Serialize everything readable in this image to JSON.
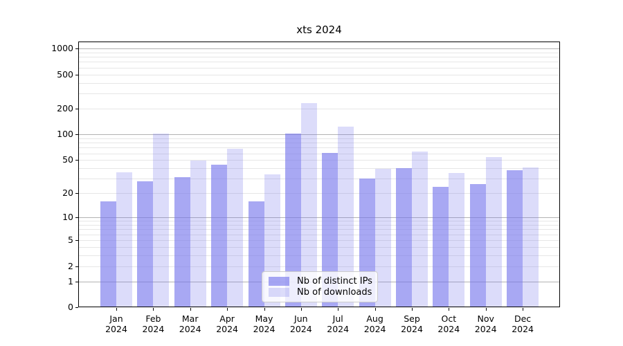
{
  "title": "xts 2024",
  "chart_data": {
    "type": "bar",
    "title": "xts 2024",
    "categories": [
      "Jan 2024",
      "Feb 2024",
      "Mar 2024",
      "Apr 2024",
      "May 2024",
      "Jun 2024",
      "Jul 2024",
      "Aug 2024",
      "Sep 2024",
      "Oct 2024",
      "Nov 2024",
      "Dec 2024"
    ],
    "series": [
      {
        "name": "Nb of distinct IPs",
        "values": [
          16,
          28,
          31,
          44,
          16,
          102,
          61,
          30,
          40,
          24,
          26,
          38
        ]
      },
      {
        "name": "Nb of downloads",
        "values": [
          36,
          102,
          49,
          68,
          34,
          230,
          124,
          39,
          63,
          35,
          54,
          41
        ]
      }
    ],
    "xlabel": "",
    "ylabel": "",
    "yscale": "log1p",
    "ylim": [
      0,
      1100
    ],
    "ytick_values": [
      0,
      1,
      2,
      5,
      10,
      20,
      50,
      100,
      200,
      500,
      1000
    ],
    "ytick_labels": [
      "0",
      "1",
      "2",
      "5",
      "10",
      "20",
      "50",
      "100",
      "200",
      "500",
      "1000"
    ],
    "minor_gridline_values": [
      3,
      4,
      6,
      7,
      8,
      9,
      30,
      40,
      60,
      70,
      80,
      90,
      300,
      400,
      600,
      700,
      800,
      900
    ],
    "emphasized_gridline_values": [
      1,
      10,
      100,
      1000
    ],
    "grid": true,
    "legend_position": "inside-bottom-center"
  },
  "legend": {
    "items": [
      {
        "label": "Nb of distinct IPs"
      },
      {
        "label": "Nb of downloads"
      }
    ]
  },
  "colors": {
    "bar_distinct_ips": "rgba(115,115,235,0.62)",
    "bar_downloads": "rgba(115,115,235,0.25)",
    "grid_major": "#b2b2b2",
    "grid_minor": "#e6e6e6",
    "axis": "#000000",
    "legend_bg": "rgba(255,255,255,0.8)",
    "legend_border": "#cccccc",
    "text": "#000000"
  }
}
